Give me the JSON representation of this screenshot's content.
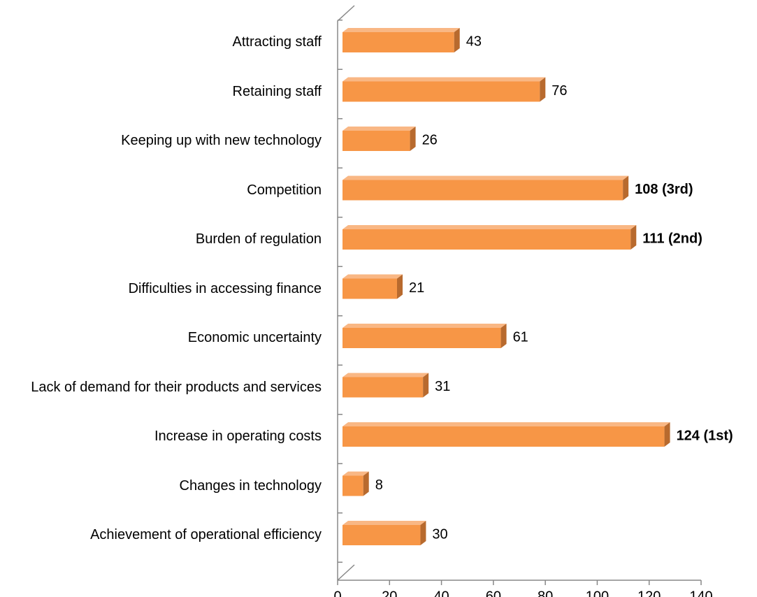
{
  "chart_data": {
    "type": "bar",
    "orientation": "horizontal",
    "categories": [
      "Attracting staff",
      "Retaining staff",
      "Keeping up with new technology",
      "Competition",
      "Burden of regulation",
      "Difficulties in accessing finance",
      "Economic uncertainty",
      "Lack of demand for their products and services",
      "Increase in operating costs",
      "Changes in technology",
      "Achievement of operational efficiency"
    ],
    "values": [
      43,
      76,
      26,
      108,
      111,
      21,
      61,
      31,
      124,
      8,
      30
    ],
    "value_labels": [
      "43",
      "76",
      "26",
      "108 (3rd)",
      "111 (2nd)",
      "21",
      "61",
      "31",
      "124 (1st)",
      "8",
      "30"
    ],
    "value_label_bold": [
      false,
      false,
      false,
      true,
      true,
      false,
      false,
      false,
      true,
      false,
      false
    ],
    "color": "#f79646",
    "xlim": [
      0,
      140
    ],
    "xticks": [
      0,
      20,
      40,
      60,
      80,
      100,
      120,
      140
    ],
    "grid": false
  }
}
